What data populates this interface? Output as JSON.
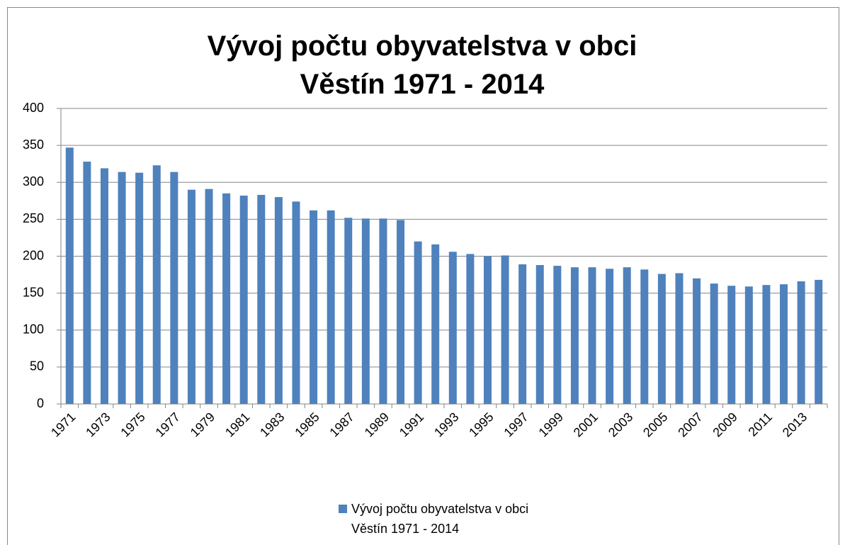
{
  "chart_data": {
    "type": "bar",
    "title": "Vývoj počtu obyvatelstva v obci Věstín 1971 - 2014",
    "categories": [
      "1971",
      null,
      "1973",
      null,
      "1975",
      null,
      "1977",
      null,
      "1979",
      null,
      "1981",
      null,
      "1983",
      null,
      "1985",
      null,
      "1987",
      null,
      "1989",
      null,
      "1991",
      null,
      "1993",
      null,
      "1995",
      null,
      "1997",
      null,
      "1999",
      null,
      "2001",
      null,
      "2003",
      null,
      "2005",
      null,
      "2007",
      null,
      "2009",
      null,
      "2011",
      null,
      "2013",
      null
    ],
    "series": [
      {
        "name": "Vývoj počtu obyvatelstva v obci Věstín 1971 - 2014",
        "color": "#4f81bd",
        "values": [
          347,
          328,
          319,
          314,
          313,
          323,
          314,
          290,
          291,
          285,
          282,
          283,
          280,
          274,
          262,
          262,
          252,
          251,
          251,
          249,
          220,
          216,
          206,
          203,
          200,
          201,
          189,
          188,
          187,
          185,
          185,
          183,
          185,
          182,
          176,
          177,
          170,
          163,
          160,
          159,
          161,
          162,
          166,
          168
        ]
      }
    ],
    "ylim": [
      0,
      400
    ],
    "yticks": [
      0,
      50,
      100,
      150,
      200,
      250,
      300,
      350,
      400
    ],
    "grid": true,
    "legend": "bottom"
  }
}
